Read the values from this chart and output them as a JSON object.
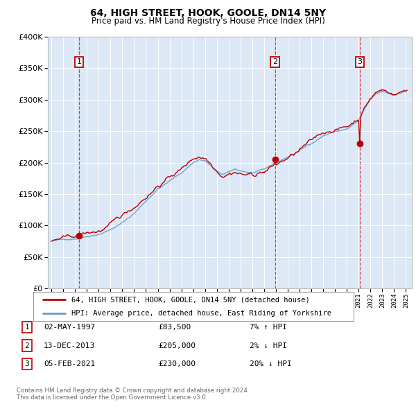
{
  "title1": "64, HIGH STREET, HOOK, GOOLE, DN14 5NY",
  "title2": "Price paid vs. HM Land Registry's House Price Index (HPI)",
  "legend_line1": "64, HIGH STREET, HOOK, GOOLE, DN14 5NY (detached house)",
  "legend_line2": "HPI: Average price, detached house, East Riding of Yorkshire",
  "footer1": "Contains HM Land Registry data © Crown copyright and database right 2024.",
  "footer2": "This data is licensed under the Open Government Licence v3.0.",
  "sales": [
    {
      "num": 1,
      "date": "02-MAY-1997",
      "price": 83500,
      "hpi_pct": "7%",
      "hpi_dir": "↑"
    },
    {
      "num": 2,
      "date": "13-DEC-2013",
      "price": 205000,
      "hpi_pct": "2%",
      "hpi_dir": "↓"
    },
    {
      "num": 3,
      "date": "05-FEB-2021",
      "price": 230000,
      "hpi_pct": "20%",
      "hpi_dir": "↓"
    }
  ],
  "sale_years": [
    1997.33,
    2013.92,
    2021.09
  ],
  "sale_prices": [
    83500,
    205000,
    230000
  ],
  "ylim": [
    0,
    400000
  ],
  "xlim": [
    1994.7,
    2025.5
  ],
  "plot_bg_color": "#dce8f5",
  "red_color": "#bb0000",
  "blue_color": "#6699cc",
  "dashed_red": "#cc2222",
  "note_color": "#666666"
}
